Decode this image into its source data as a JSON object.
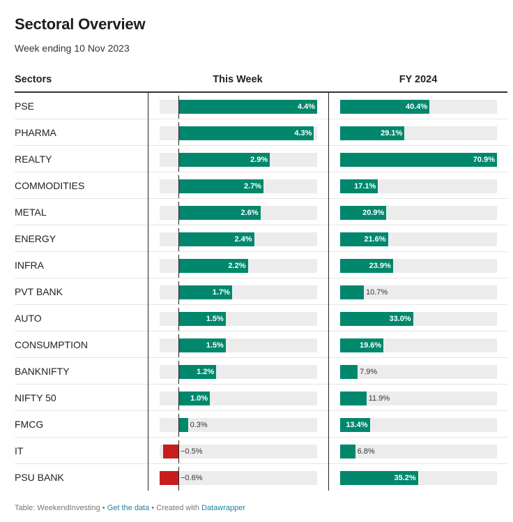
{
  "title": "Sectoral Overview",
  "subtitle": "Week ending 10 Nov 2023",
  "columns": {
    "sectors": "Sectors",
    "week": "This Week",
    "fy": "FY 2024"
  },
  "footer": {
    "source": "Table: WeekendInvesting",
    "sep1": " • ",
    "get_data": "Get the data",
    "sep2": " • Created with ",
    "tool": "Datawrapper"
  },
  "colors": {
    "positive": "#00876c",
    "negative": "#c71e1d",
    "track": "#ececec"
  },
  "chart_data": {
    "type": "table",
    "columns": [
      "Sectors",
      "This Week",
      "FY 2024"
    ],
    "week_range": [
      -1,
      4.4
    ],
    "fy_range": [
      0,
      70.9
    ],
    "rows": [
      {
        "sector": "PSE",
        "week": 4.4,
        "week_label": "4.4%",
        "fy": 40.4,
        "fy_label": "40.4%"
      },
      {
        "sector": "PHARMA",
        "week": 4.3,
        "week_label": "4.3%",
        "fy": 29.1,
        "fy_label": "29.1%"
      },
      {
        "sector": "REALTY",
        "week": 2.9,
        "week_label": "2.9%",
        "fy": 70.9,
        "fy_label": "70.9%"
      },
      {
        "sector": "COMMODITIES",
        "week": 2.7,
        "week_label": "2.7%",
        "fy": 17.1,
        "fy_label": "17.1%"
      },
      {
        "sector": "METAL",
        "week": 2.6,
        "week_label": "2.6%",
        "fy": 20.9,
        "fy_label": "20.9%"
      },
      {
        "sector": "ENERGY",
        "week": 2.4,
        "week_label": "2.4%",
        "fy": 21.6,
        "fy_label": "21.6%"
      },
      {
        "sector": "INFRA",
        "week": 2.2,
        "week_label": "2.2%",
        "fy": 23.9,
        "fy_label": "23.9%"
      },
      {
        "sector": "PVT BANK",
        "week": 1.7,
        "week_label": "1.7%",
        "fy": 10.7,
        "fy_label": "10.7%"
      },
      {
        "sector": "AUTO",
        "week": 1.5,
        "week_label": "1.5%",
        "fy": 33.0,
        "fy_label": "33.0%"
      },
      {
        "sector": "CONSUMPTION",
        "week": 1.5,
        "week_label": "1.5%",
        "fy": 19.6,
        "fy_label": "19.6%"
      },
      {
        "sector": "BANKNIFTY",
        "week": 1.2,
        "week_label": "1.2%",
        "fy": 7.9,
        "fy_label": "7.9%"
      },
      {
        "sector": "NIFTY 50",
        "week": 1.0,
        "week_label": "1.0%",
        "fy": 11.9,
        "fy_label": "11.9%"
      },
      {
        "sector": "FMCG",
        "week": 0.3,
        "week_label": "0.3%",
        "fy": 13.4,
        "fy_label": "13.4%"
      },
      {
        "sector": "IT",
        "week": -0.5,
        "week_label": "−0.5%",
        "fy": 6.8,
        "fy_label": "6.8%"
      },
      {
        "sector": "PSU BANK",
        "week": -0.6,
        "week_label": "−0.6%",
        "fy": 35.2,
        "fy_label": "35.2%"
      }
    ]
  }
}
